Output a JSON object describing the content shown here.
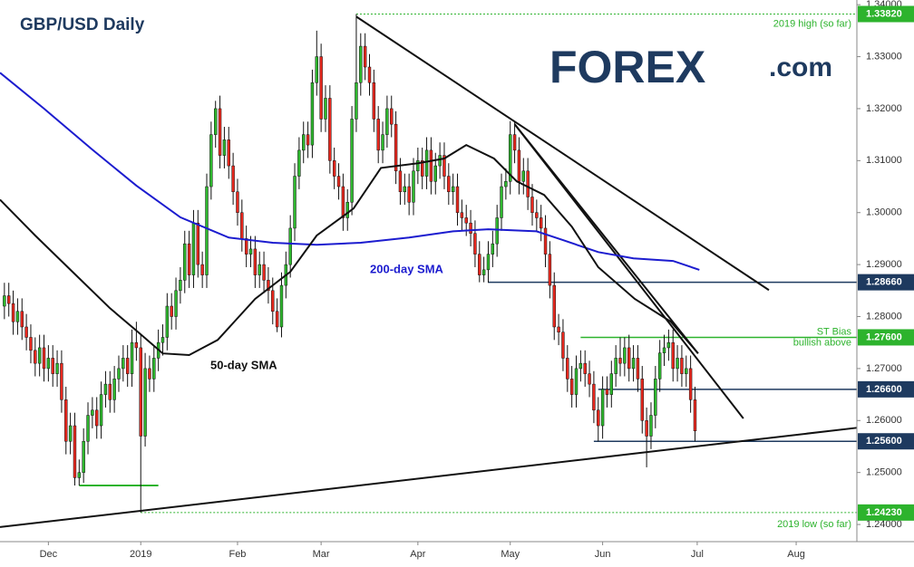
{
  "chart_data": {
    "type": "candlestick",
    "title": "GBP/USD Daily",
    "logo": {
      "brand": "FOREX",
      "suffix": ".com"
    },
    "up_color": "#2eb82e",
    "down_color": "#e8281e",
    "wick_color": "#111111",
    "xlim": [
      -1,
      193.8
    ],
    "ylim": [
      1.2367,
      1.3409
    ],
    "xticks": [
      {
        "value": 10,
        "label": "Dec"
      },
      {
        "value": 31,
        "label": "2019"
      },
      {
        "value": 53,
        "label": "Feb"
      },
      {
        "value": 72,
        "label": "Mar"
      },
      {
        "value": 94,
        "label": "Apr"
      },
      {
        "value": 115,
        "label": "May"
      },
      {
        "value": 136,
        "label": "Jun"
      },
      {
        "value": 157.5,
        "label": "Jul"
      },
      {
        "value": 180,
        "label": "Aug"
      }
    ],
    "yticks": [
      {
        "value": 1.24,
        "label": "1.24000"
      },
      {
        "value": 1.25,
        "label": "1.25000"
      },
      {
        "value": 1.26,
        "label": "1.26000"
      },
      {
        "value": 1.27,
        "label": "1.27000"
      },
      {
        "value": 1.28,
        "label": "1.28000"
      },
      {
        "value": 1.29,
        "label": "1.29000"
      },
      {
        "value": 1.3,
        "label": "1.30000"
      },
      {
        "value": 1.31,
        "label": "1.31000"
      },
      {
        "value": 1.32,
        "label": "1.32000"
      },
      {
        "value": 1.33,
        "label": "1.33000"
      },
      {
        "value": 1.34,
        "label": "1.34000"
      }
    ],
    "categories": [
      null,
      null,
      null,
      null,
      null,
      null,
      null,
      null,
      null,
      null,
      null,
      null,
      null,
      null,
      null,
      null,
      null,
      null,
      null,
      null,
      null,
      null,
      null,
      null,
      null,
      null,
      null,
      null,
      null,
      null,
      null,
      null,
      null,
      null,
      null,
      null,
      null,
      null,
      null,
      null,
      null,
      null,
      null,
      null,
      null,
      null,
      null,
      null,
      null,
      null,
      null,
      null,
      null,
      null,
      null,
      null,
      null,
      null,
      null,
      null,
      null,
      null,
      null,
      null,
      null,
      null,
      null,
      null,
      null,
      null,
      null,
      null,
      null,
      null,
      null,
      null,
      null,
      null,
      null,
      null,
      null,
      null,
      null,
      null,
      null,
      null,
      null,
      null,
      null,
      null,
      null,
      null,
      null,
      null,
      null,
      null,
      null,
      null,
      null,
      null,
      null,
      null,
      null,
      null,
      null,
      null,
      null,
      null,
      null,
      null,
      null,
      null,
      null,
      null,
      null,
      null,
      null,
      null,
      null,
      null,
      null,
      null,
      null,
      null,
      null,
      null,
      null,
      null,
      null,
      null,
      null,
      null,
      null,
      null,
      null,
      null,
      null,
      null,
      null,
      null,
      null,
      null,
      null,
      null,
      null,
      null,
      null,
      null,
      null,
      null,
      null,
      null,
      null,
      null,
      null,
      null,
      null,
      null
    ],
    "ohlc": [
      [
        1.282,
        1.2865,
        1.2795,
        1.284
      ],
      [
        1.284,
        1.2865,
        1.28,
        1.2825
      ],
      [
        1.2825,
        1.285,
        1.2765,
        1.279
      ],
      [
        1.279,
        1.2835,
        1.2765,
        1.281
      ],
      [
        1.281,
        1.2835,
        1.2755,
        1.278
      ],
      [
        1.278,
        1.2805,
        1.2735,
        1.276
      ],
      [
        1.276,
        1.2785,
        1.271,
        1.2735
      ],
      [
        1.2735,
        1.276,
        1.2685,
        1.271
      ],
      [
        1.271,
        1.2765,
        1.2685,
        1.274
      ],
      [
        1.274,
        1.2765,
        1.2675,
        1.27
      ],
      [
        1.27,
        1.2745,
        1.2675,
        1.272
      ],
      [
        1.272,
        1.2745,
        1.2665,
        1.269
      ],
      [
        1.269,
        1.2735,
        1.2665,
        1.271
      ],
      [
        1.271,
        1.2735,
        1.2615,
        1.264
      ],
      [
        1.264,
        1.2665,
        1.2535,
        1.256
      ],
      [
        1.256,
        1.2615,
        1.2535,
        1.259
      ],
      [
        1.259,
        1.2615,
        1.2475,
        1.249
      ],
      [
        1.249,
        1.2525,
        1.2475,
        1.25
      ],
      [
        1.25,
        1.2585,
        1.248,
        1.256
      ],
      [
        1.256,
        1.2635,
        1.2535,
        1.261
      ],
      [
        1.261,
        1.2645,
        1.2585,
        1.262
      ],
      [
        1.262,
        1.2645,
        1.2565,
        1.259
      ],
      [
        1.259,
        1.2675,
        1.2565,
        1.265
      ],
      [
        1.265,
        1.2695,
        1.2625,
        1.267
      ],
      [
        1.267,
        1.2695,
        1.2615,
        1.264
      ],
      [
        1.264,
        1.2705,
        1.2615,
        1.268
      ],
      [
        1.268,
        1.2725,
        1.2655,
        1.27
      ],
      [
        1.27,
        1.2745,
        1.2675,
        1.272
      ],
      [
        1.272,
        1.2745,
        1.2665,
        1.269
      ],
      [
        1.269,
        1.2775,
        1.2665,
        1.275
      ],
      [
        1.275,
        1.279,
        1.2715,
        1.274
      ],
      [
        1.274,
        1.2765,
        1.2423,
        1.257
      ],
      [
        1.257,
        1.273,
        1.255,
        1.27
      ],
      [
        1.27,
        1.2725,
        1.2655,
        1.268
      ],
      [
        1.268,
        1.2745,
        1.2655,
        1.272
      ],
      [
        1.272,
        1.2775,
        1.2695,
        1.275
      ],
      [
        1.275,
        1.2785,
        1.2725,
        1.276
      ],
      [
        1.276,
        1.2845,
        1.2735,
        1.282
      ],
      [
        1.282,
        1.2845,
        1.2775,
        1.28
      ],
      [
        1.28,
        1.2875,
        1.2775,
        1.285
      ],
      [
        1.285,
        1.2895,
        1.2825,
        1.287
      ],
      [
        1.287,
        1.2965,
        1.2845,
        1.294
      ],
      [
        1.294,
        1.2965,
        1.2855,
        1.288
      ],
      [
        1.288,
        1.3005,
        1.2855,
        1.298
      ],
      [
        1.298,
        1.3005,
        1.2875,
        1.29
      ],
      [
        1.29,
        1.2925,
        1.2855,
        1.288
      ],
      [
        1.288,
        1.3075,
        1.2855,
        1.305
      ],
      [
        1.305,
        1.3175,
        1.3025,
        1.315
      ],
      [
        1.315,
        1.3215,
        1.3125,
        1.32
      ],
      [
        1.32,
        1.3225,
        1.3085,
        1.311
      ],
      [
        1.311,
        1.3165,
        1.3085,
        1.314
      ],
      [
        1.314,
        1.3165,
        1.3065,
        1.309
      ],
      [
        1.309,
        1.3115,
        1.3015,
        1.304
      ],
      [
        1.304,
        1.3065,
        1.2975,
        1.3
      ],
      [
        1.3,
        1.3025,
        1.2925,
        1.295
      ],
      [
        1.295,
        1.2975,
        1.2895,
        1.292
      ],
      [
        1.292,
        1.2955,
        1.2895,
        1.293
      ],
      [
        1.293,
        1.2955,
        1.2855,
        1.288
      ],
      [
        1.288,
        1.2925,
        1.2855,
        1.29
      ],
      [
        1.29,
        1.2925,
        1.2845,
        1.287
      ],
      [
        1.287,
        1.2895,
        1.2825,
        1.285
      ],
      [
        1.285,
        1.2875,
        1.2785,
        1.281
      ],
      [
        1.281,
        1.2835,
        1.277,
        1.278
      ],
      [
        1.278,
        1.2885,
        1.276,
        1.286
      ],
      [
        1.286,
        1.2925,
        1.2835,
        1.29
      ],
      [
        1.29,
        1.2995,
        1.2875,
        1.297
      ],
      [
        1.297,
        1.3095,
        1.2945,
        1.307
      ],
      [
        1.307,
        1.3145,
        1.3045,
        1.312
      ],
      [
        1.312,
        1.3175,
        1.3095,
        1.315
      ],
      [
        1.315,
        1.3175,
        1.3105,
        1.313
      ],
      [
        1.313,
        1.3275,
        1.3105,
        1.325
      ],
      [
        1.325,
        1.335,
        1.3225,
        1.33
      ],
      [
        1.33,
        1.3325,
        1.3155,
        1.318
      ],
      [
        1.318,
        1.3245,
        1.3155,
        1.322
      ],
      [
        1.322,
        1.3245,
        1.3075,
        1.31
      ],
      [
        1.31,
        1.3125,
        1.3045,
        1.307
      ],
      [
        1.307,
        1.3095,
        1.3025,
        1.305
      ],
      [
        1.305,
        1.3075,
        1.2965,
        1.299
      ],
      [
        1.299,
        1.3045,
        1.2965,
        1.302
      ],
      [
        1.302,
        1.3205,
        1.2995,
        1.318
      ],
      [
        1.318,
        1.3382,
        1.3155,
        1.325
      ],
      [
        1.325,
        1.3345,
        1.3225,
        1.332
      ],
      [
        1.332,
        1.3345,
        1.3255,
        1.328
      ],
      [
        1.328,
        1.3305,
        1.3225,
        1.325
      ],
      [
        1.325,
        1.3275,
        1.3155,
        1.318
      ],
      [
        1.318,
        1.3205,
        1.3095,
        1.312
      ],
      [
        1.312,
        1.3175,
        1.3095,
        1.315
      ],
      [
        1.315,
        1.3225,
        1.3125,
        1.32
      ],
      [
        1.32,
        1.3225,
        1.3145,
        1.317
      ],
      [
        1.317,
        1.3195,
        1.3055,
        1.308
      ],
      [
        1.308,
        1.3105,
        1.3015,
        1.304
      ],
      [
        1.304,
        1.3075,
        1.3015,
        1.305
      ],
      [
        1.305,
        1.3075,
        1.2995,
        1.302
      ],
      [
        1.302,
        1.3105,
        1.2995,
        1.308
      ],
      [
        1.308,
        1.3125,
        1.3055,
        1.31
      ],
      [
        1.31,
        1.3125,
        1.3045,
        1.307
      ],
      [
        1.307,
        1.3145,
        1.3045,
        1.312
      ],
      [
        1.312,
        1.3145,
        1.3035,
        1.306
      ],
      [
        1.306,
        1.3115,
        1.3035,
        1.309
      ],
      [
        1.309,
        1.3135,
        1.3065,
        1.311
      ],
      [
        1.311,
        1.3135,
        1.3045,
        1.307
      ],
      [
        1.307,
        1.3095,
        1.3015,
        1.304
      ],
      [
        1.304,
        1.3075,
        1.3015,
        1.305
      ],
      [
        1.305,
        1.3075,
        1.2975,
        1.3
      ],
      [
        1.3,
        1.3025,
        1.2965,
        1.299
      ],
      [
        1.299,
        1.3015,
        1.2955,
        1.298
      ],
      [
        1.298,
        1.3005,
        1.2935,
        1.296
      ],
      [
        1.296,
        1.2985,
        1.2895,
        1.292
      ],
      [
        1.292,
        1.2945,
        1.2866,
        1.288
      ],
      [
        1.288,
        1.2915,
        1.2866,
        1.289
      ],
      [
        1.289,
        1.2945,
        1.2865,
        1.292
      ],
      [
        1.292,
        1.2965,
        1.2895,
        1.294
      ],
      [
        1.294,
        1.3015,
        1.2915,
        1.299
      ],
      [
        1.299,
        1.3075,
        1.2965,
        1.305
      ],
      [
        1.305,
        1.3085,
        1.3025,
        1.306
      ],
      [
        1.306,
        1.3176,
        1.3035,
        1.315
      ],
      [
        1.315,
        1.3175,
        1.3095,
        1.312
      ],
      [
        1.312,
        1.3145,
        1.3035,
        1.306
      ],
      [
        1.306,
        1.3105,
        1.3035,
        1.308
      ],
      [
        1.308,
        1.3105,
        1.3005,
        1.303
      ],
      [
        1.303,
        1.3055,
        1.2975,
        1.3
      ],
      [
        1.3,
        1.3025,
        1.2965,
        1.299
      ],
      [
        1.299,
        1.3015,
        1.2945,
        1.297
      ],
      [
        1.297,
        1.2995,
        1.2895,
        1.292
      ],
      [
        1.292,
        1.2945,
        1.2835,
        1.286
      ],
      [
        1.286,
        1.2885,
        1.2755,
        1.278
      ],
      [
        1.278,
        1.2805,
        1.2745,
        1.277
      ],
      [
        1.277,
        1.2795,
        1.2695,
        1.272
      ],
      [
        1.272,
        1.2745,
        1.2655,
        1.268
      ],
      [
        1.268,
        1.2705,
        1.2625,
        1.265
      ],
      [
        1.265,
        1.2725,
        1.2625,
        1.27
      ],
      [
        1.27,
        1.2735,
        1.2675,
        1.271
      ],
      [
        1.271,
        1.2735,
        1.2665,
        1.269
      ],
      [
        1.269,
        1.2715,
        1.2645,
        1.267
      ],
      [
        1.267,
        1.2695,
        1.2595,
        1.262
      ],
      [
        1.262,
        1.2645,
        1.256,
        1.259
      ],
      [
        1.259,
        1.2685,
        1.2565,
        1.266
      ],
      [
        1.266,
        1.2685,
        1.2625,
        1.265
      ],
      [
        1.265,
        1.2715,
        1.2625,
        1.269
      ],
      [
        1.269,
        1.2745,
        1.2665,
        1.272
      ],
      [
        1.272,
        1.276,
        1.2685,
        1.271
      ],
      [
        1.271,
        1.276,
        1.2685,
        1.274
      ],
      [
        1.274,
        1.2765,
        1.2675,
        1.27
      ],
      [
        1.27,
        1.2745,
        1.2675,
        1.272
      ],
      [
        1.272,
        1.2745,
        1.2655,
        1.268
      ],
      [
        1.268,
        1.2705,
        1.2575,
        1.26
      ],
      [
        1.26,
        1.2625,
        1.251,
        1.257
      ],
      [
        1.257,
        1.2635,
        1.2545,
        1.261
      ],
      [
        1.261,
        1.2705,
        1.2585,
        1.268
      ],
      [
        1.268,
        1.2755,
        1.2655,
        1.273
      ],
      [
        1.273,
        1.2765,
        1.2705,
        1.274
      ],
      [
        1.274,
        1.2775,
        1.2715,
        1.275
      ],
      [
        1.275,
        1.2775,
        1.2675,
        1.27
      ],
      [
        1.27,
        1.2745,
        1.2675,
        1.272
      ],
      [
        1.272,
        1.2745,
        1.2665,
        1.269
      ],
      [
        1.269,
        1.2725,
        1.2665,
        1.27
      ],
      [
        1.27,
        1.2725,
        1.2615,
        1.264
      ],
      [
        1.264,
        1.2665,
        1.256,
        1.258
      ]
    ],
    "series": [
      {
        "name": "200-day SMA",
        "color": "#1c1ccf",
        "x": [
          -1,
          9,
          20,
          30,
          40,
          51,
          61,
          71,
          81,
          92,
          102,
          110,
          121,
          127,
          135,
          143,
          152,
          158
        ],
        "values": [
          1.3269,
          1.32,
          1.3121,
          1.3052,
          1.2991,
          1.2952,
          1.2942,
          1.2938,
          1.2942,
          1.2952,
          1.2964,
          1.2968,
          1.2964,
          1.2947,
          1.2924,
          1.2912,
          1.2907,
          1.289
        ]
      },
      {
        "name": "50-day SMA",
        "color": "#111111",
        "x": [
          -1,
          7,
          15.5,
          24,
          30,
          36,
          42,
          48.5,
          57,
          65,
          71,
          79.4,
          85.6,
          94,
          100,
          105,
          111.3,
          116.5,
          122.7,
          129,
          135,
          143.3,
          151.5,
          157.7
        ],
        "values": [
          1.3025,
          1.2956,
          1.2886,
          1.2816,
          1.2773,
          1.2729,
          1.2726,
          1.2755,
          1.2834,
          1.2886,
          1.2956,
          1.3008,
          1.3086,
          1.3095,
          1.3104,
          1.313,
          1.3104,
          1.306,
          1.3034,
          1.2973,
          1.2895,
          1.2834,
          1.279,
          1.2729
        ]
      }
    ],
    "trendlines": [
      {
        "color": "#111111",
        "x": [
          80,
          173.8
        ],
        "values": [
          1.3377,
          1.2851
        ]
      },
      {
        "color": "#111111",
        "x": [
          116,
          157.7
        ],
        "values": [
          1.317,
          1.2729
        ]
      },
      {
        "color": "#111111",
        "x": [
          116,
          168
        ],
        "values": [
          1.317,
          1.2604
        ]
      },
      {
        "color": "#111111",
        "x": [
          -1,
          193.8
        ],
        "values": [
          1.2395,
          1.2586
        ]
      },
      {
        "color": "#2db32d",
        "x": [
          17,
          35
        ],
        "values": [
          1.2475,
          1.2475
        ]
      }
    ],
    "levels": [
      {
        "value": 1.3382,
        "label": "1.33820",
        "x_start": 80,
        "color": "#2db32d",
        "style": "dotted",
        "text": [
          "2019 high (so far)"
        ]
      },
      {
        "value": 1.2866,
        "label": "1.28660",
        "x_start": 110,
        "color": "#1e3a5f",
        "style": "solid"
      },
      {
        "value": 1.276,
        "label": "1.27600",
        "x_start": 131,
        "color": "#2db32d",
        "style": "solid",
        "text": [
          "ST Bias",
          "bullish above"
        ]
      },
      {
        "value": 1.266,
        "label": "1.26600",
        "x_start": 135,
        "color": "#1e3a5f",
        "style": "solid"
      },
      {
        "value": 1.256,
        "label": "1.25600",
        "x_start": 134,
        "color": "#1e3a5f",
        "style": "solid"
      },
      {
        "value": 1.2423,
        "label": "1.24230",
        "x_start": 31,
        "color": "#2db32d",
        "style": "dotted",
        "text": [
          "2019 low (so far)"
        ]
      }
    ]
  }
}
